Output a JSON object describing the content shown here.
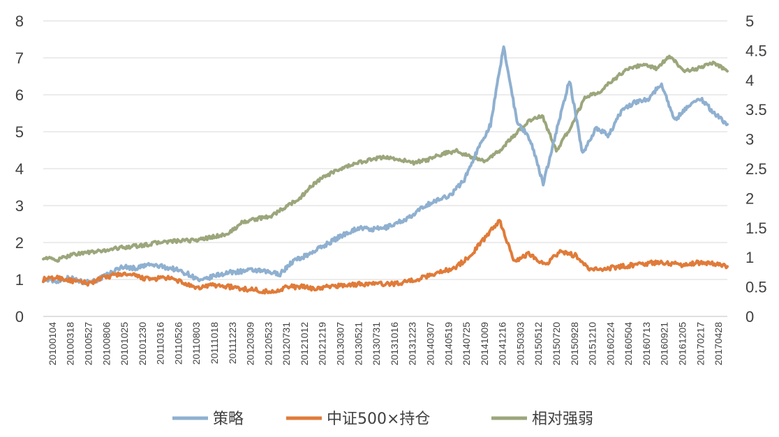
{
  "chart_data": {
    "type": "line",
    "title": "",
    "xlabel": "",
    "ylabel": "",
    "ylim": [
      0,
      8
    ],
    "y2lim": [
      0,
      5
    ],
    "yticks": [
      "0",
      "1",
      "2",
      "3",
      "4",
      "5",
      "6",
      "7",
      "8"
    ],
    "y2ticks": [
      "0",
      "0.5",
      "1",
      "1.5",
      "2",
      "2.5",
      "3",
      "3.5",
      "4",
      "4.5",
      "5"
    ],
    "grid": "horizontal",
    "legend_position": "bottom",
    "x_tick_labels": [
      "20100104",
      "20100318",
      "20100527",
      "20100806",
      "20101025",
      "20101230",
      "20110316",
      "20110526",
      "20110803",
      "20111018",
      "20111223",
      "20120309",
      "20120523",
      "20120731",
      "20121012",
      "20121219",
      "20130307",
      "20130521",
      "20130731",
      "20131016",
      "20131223",
      "20140307",
      "20140519",
      "20140725",
      "20141009",
      "20141216",
      "20150303",
      "20150512",
      "20150720",
      "20150928",
      "20151210",
      "20160224",
      "20160504",
      "20160713",
      "20160921",
      "20161205",
      "20170217",
      "20170428"
    ],
    "series": [
      {
        "name": "策略",
        "axis": "left",
        "color": "#8FB0D0",
        "values": [
          1.0,
          0.95,
          1.05,
          0.93,
          0.97,
          1.15,
          1.35,
          1.3,
          1.4,
          1.35,
          1.28,
          1.15,
          0.95,
          1.1,
          1.18,
          1.22,
          1.25,
          1.2,
          1.15,
          1.5,
          1.65,
          1.85,
          2.05,
          2.25,
          2.4,
          2.35,
          2.4,
          2.55,
          2.7,
          3.0,
          3.15,
          3.3,
          3.7,
          4.5,
          5.2,
          7.3,
          5.3,
          4.8,
          3.6,
          5.0,
          6.4,
          4.4,
          5.1,
          4.9,
          5.6,
          5.8,
          5.9,
          6.3,
          5.3,
          5.7,
          5.9,
          5.5,
          5.2
        ]
      },
      {
        "name": "中证500×持仓",
        "axis": "left",
        "color": "#E07B39",
        "values": [
          1.0,
          1.05,
          0.95,
          0.9,
          1.05,
          1.15,
          1.1,
          1.0,
          1.05,
          0.95,
          0.75,
          0.85,
          0.82,
          0.75,
          0.72,
          0.65,
          0.8,
          0.8,
          0.75,
          0.82,
          0.85,
          0.88,
          0.88,
          0.88,
          0.95,
          1.05,
          1.2,
          1.3,
          1.6,
          2.1,
          2.6,
          1.5,
          1.7,
          1.4,
          1.75,
          1.65,
          1.25,
          1.3,
          1.35,
          1.4,
          1.45,
          1.45,
          1.4,
          1.45,
          1.45,
          1.35
        ]
      },
      {
        "name": "相对强弱",
        "axis": "right",
        "color": "#9BA67B",
        "values": [
          1.0,
          0.95,
          1.05,
          1.08,
          1.1,
          1.15,
          1.18,
          1.2,
          1.25,
          1.27,
          1.28,
          1.3,
          1.35,
          1.4,
          1.6,
          1.65,
          1.7,
          1.85,
          2.0,
          2.25,
          2.4,
          2.5,
          2.6,
          2.65,
          2.7,
          2.65,
          2.6,
          2.65,
          2.75,
          2.8,
          2.7,
          2.62,
          2.8,
          3.05,
          3.3,
          3.4,
          2.8,
          3.2,
          3.7,
          3.8,
          4.0,
          4.2,
          4.25,
          4.2,
          4.4,
          4.15,
          4.2,
          4.3,
          4.15
        ]
      }
    ]
  }
}
